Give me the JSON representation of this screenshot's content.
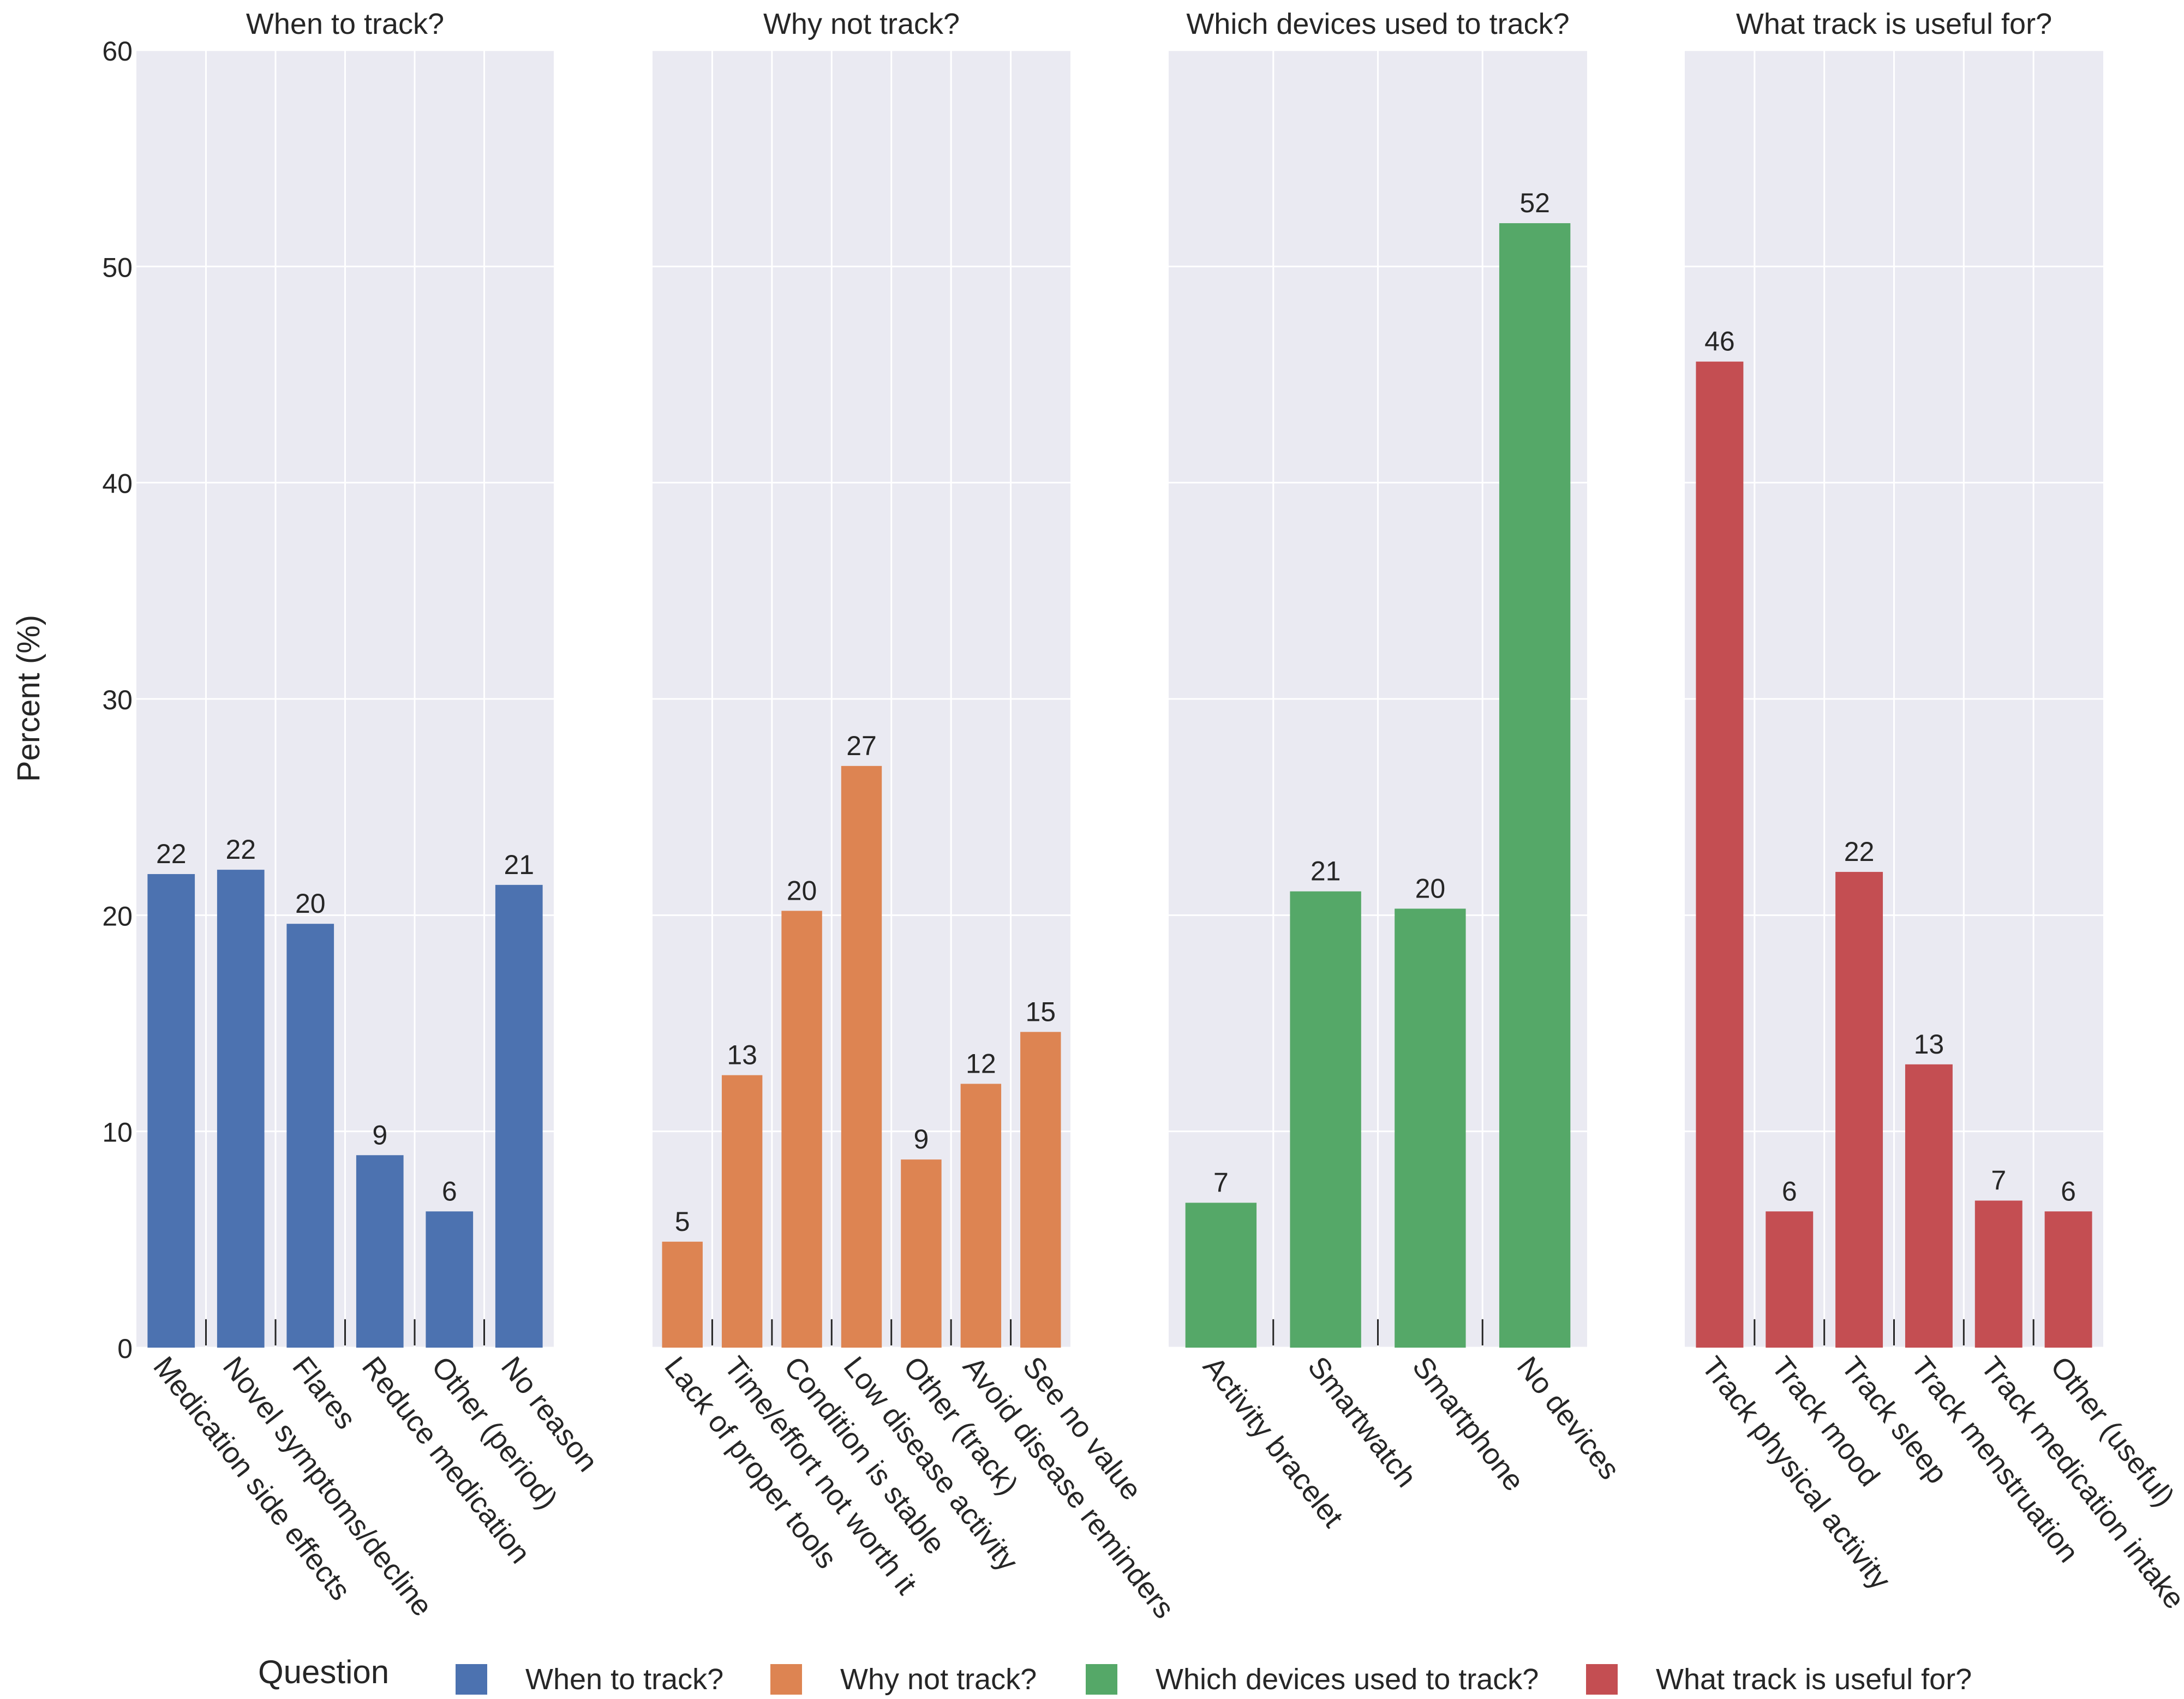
{
  "chart_data": {
    "type": "bar",
    "ylabel": "Percent (%)",
    "ylim": [
      0,
      60
    ],
    "yticks": [
      0,
      10,
      20,
      30,
      40,
      50,
      60
    ],
    "grid": true,
    "value_labels": true,
    "legend": {
      "title": "Question",
      "placement": "bottom",
      "entries": [
        {
          "label": "When to track?",
          "color": "#4c72b0"
        },
        {
          "label": "Why not track?",
          "color": "#dd8452"
        },
        {
          "label": "Which devices used to track?",
          "color": "#55a868"
        },
        {
          "label": "What track is useful for?",
          "color": "#c44e52"
        }
      ]
    },
    "panels": [
      {
        "title": "When to track?",
        "color": "#4c72b0",
        "categories": [
          "Medication side effects",
          "Novel symptoms/decline",
          "Flares",
          "Reduce medication",
          "Other (period)",
          "No reason"
        ],
        "values": [
          21.9,
          22.1,
          19.6,
          8.9,
          6.3,
          21.4
        ],
        "labels": [
          "22",
          "22",
          "20",
          "9",
          "6",
          "21"
        ]
      },
      {
        "title": "Why not track?",
        "color": "#dd8452",
        "categories": [
          "Lack of proper tools",
          "Time/effort not worth it",
          "Condition is stable",
          "Low disease activity",
          "Other (track)",
          "Avoid disease reminders",
          "See no value"
        ],
        "values": [
          4.9,
          12.6,
          20.2,
          26.9,
          8.7,
          12.2,
          14.6
        ],
        "labels": [
          "5",
          "13",
          "20",
          "27",
          "9",
          "12",
          "15"
        ]
      },
      {
        "title": "Which devices used to track?",
        "color": "#55a868",
        "categories": [
          "Activity bracelet",
          "Smartwatch",
          "Smartphone",
          "No devices"
        ],
        "values": [
          6.7,
          21.1,
          20.3,
          52.0
        ],
        "labels": [
          "7",
          "21",
          "20",
          "52"
        ]
      },
      {
        "title": "What track is useful for?",
        "color": "#c44e52",
        "categories": [
          "Track physical activity",
          "Track mood",
          "Track sleep",
          "Track menstruation",
          "Track medication intake",
          "Other (useful)"
        ],
        "values": [
          45.6,
          6.3,
          22.0,
          13.1,
          6.8,
          6.3
        ],
        "labels": [
          "46",
          "6",
          "22",
          "13",
          "7",
          "6"
        ]
      }
    ]
  }
}
